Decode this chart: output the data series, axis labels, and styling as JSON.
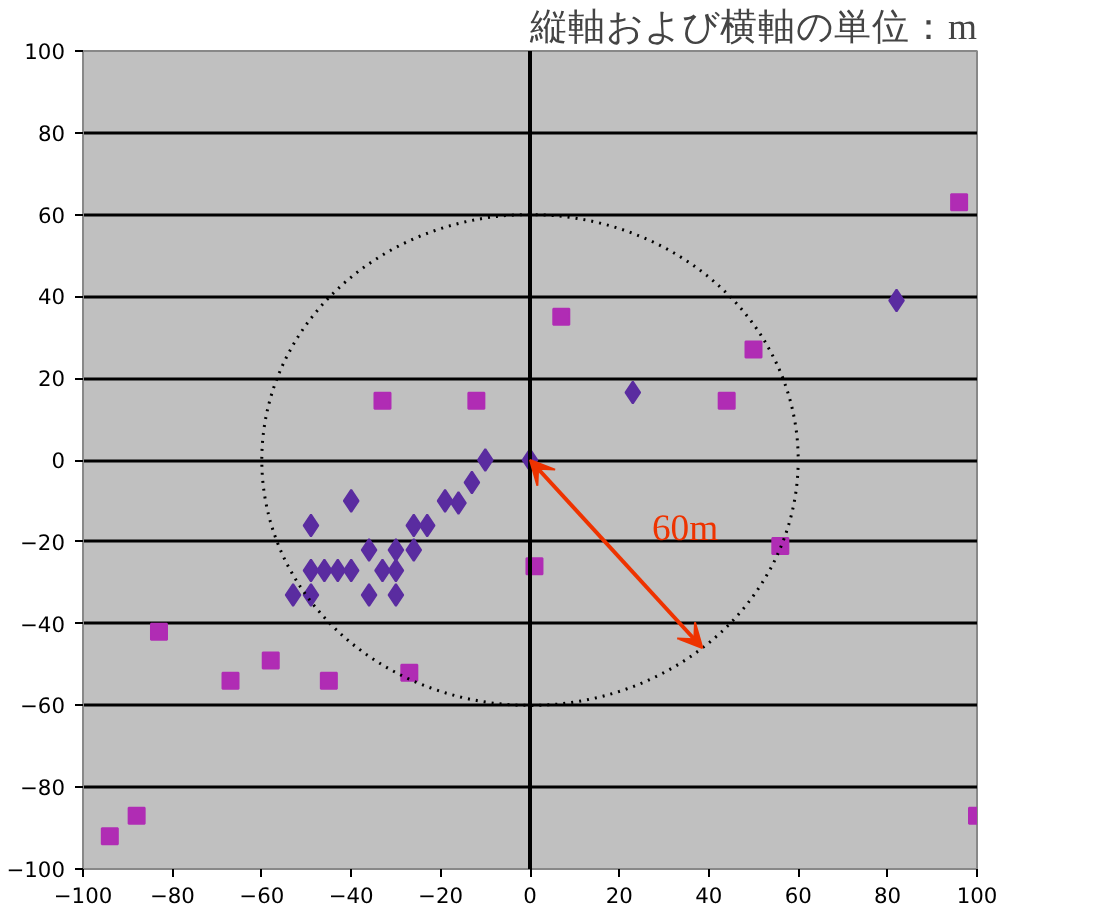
{
  "chart_data": {
    "type": "scatter",
    "title": "縦軸および横軸の単位：m",
    "xlim": [
      -100,
      100
    ],
    "ylim": [
      -100,
      100
    ],
    "xticks": [
      -100,
      -80,
      -60,
      -40,
      -20,
      0,
      20,
      40,
      60,
      80,
      100
    ],
    "yticks": [
      -100,
      -80,
      -60,
      -40,
      -20,
      0,
      20,
      40,
      60,
      80,
      100
    ],
    "grid": "y",
    "annotations": [
      "60m"
    ],
    "ref_lines": [
      {
        "axis": "x",
        "value": 0,
        "color": "#000000"
      }
    ],
    "series": [
      {
        "color": "#5a2ca0",
        "marker": "diamond",
        "x": [
          -10,
          0,
          -13,
          -16,
          -19,
          -23,
          -26,
          -40,
          -49,
          -36,
          -30,
          -26,
          -49,
          -46,
          -43,
          -40,
          -33,
          -30,
          -53,
          -49,
          -36,
          -30,
          23,
          82
        ],
        "values": [
          0,
          0,
          -5.5,
          -10.5,
          -10,
          -16,
          -16,
          -10,
          -16,
          -22,
          -22,
          -22,
          -27,
          -27,
          -27,
          -27,
          -27,
          -27,
          -33,
          -33,
          -33,
          -33,
          16.5,
          39
        ]
      },
      {
        "color": "#b02cb4",
        "marker": "square",
        "x": [
          -33,
          -12,
          7,
          50,
          44,
          96,
          1,
          -83,
          -58,
          -67,
          -45,
          -27,
          -88,
          -94,
          56,
          100
        ],
        "values": [
          14.5,
          14.5,
          35,
          27,
          14.5,
          63,
          -26,
          -42,
          -49,
          -54,
          -54,
          -52,
          -87,
          -92,
          -21,
          -87
        ]
      }
    ]
  }
}
